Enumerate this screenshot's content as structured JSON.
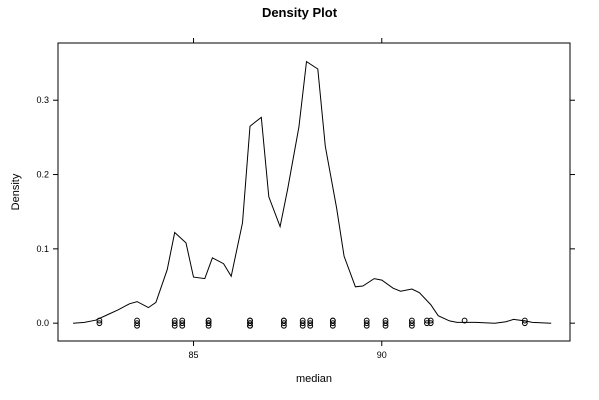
{
  "chart_data": {
    "type": "line",
    "title": "Density Plot",
    "xlabel": "median",
    "ylabel": "Density",
    "xlim": [
      81.4,
      95.0
    ],
    "ylim": [
      -0.024,
      0.377
    ],
    "x_ticks": [
      85,
      90
    ],
    "x_tick_labels": [
      "85",
      "90"
    ],
    "y_ticks": [
      0.0,
      0.1,
      0.2,
      0.3
    ],
    "y_tick_labels": [
      "0.0",
      "0.1",
      "0.2",
      "0.3"
    ],
    "grid": false,
    "series": [
      {
        "values": [
          [
            81.8,
            0.0
          ],
          [
            82.1,
            0.001
          ],
          [
            82.4,
            0.004
          ],
          [
            82.7,
            0.011
          ],
          [
            83.0,
            0.018
          ],
          [
            83.3,
            0.026
          ],
          [
            83.5,
            0.029
          ],
          [
            83.8,
            0.021
          ],
          [
            84.0,
            0.028
          ],
          [
            84.3,
            0.072
          ],
          [
            84.5,
            0.122
          ],
          [
            84.8,
            0.108
          ],
          [
            85.0,
            0.062
          ],
          [
            85.3,
            0.06
          ],
          [
            85.5,
            0.088
          ],
          [
            85.8,
            0.08
          ],
          [
            86.0,
            0.063
          ],
          [
            86.3,
            0.135
          ],
          [
            86.5,
            0.265
          ],
          [
            86.8,
            0.277
          ],
          [
            87.0,
            0.17
          ],
          [
            87.3,
            0.13
          ],
          [
            87.5,
            0.18
          ],
          [
            87.8,
            0.264
          ],
          [
            88.0,
            0.352
          ],
          [
            88.3,
            0.342
          ],
          [
            88.5,
            0.238
          ],
          [
            88.8,
            0.155
          ],
          [
            89.0,
            0.09
          ],
          [
            89.3,
            0.049
          ],
          [
            89.5,
            0.05
          ],
          [
            89.8,
            0.06
          ],
          [
            90.0,
            0.058
          ],
          [
            90.3,
            0.047
          ],
          [
            90.5,
            0.043
          ],
          [
            90.8,
            0.046
          ],
          [
            91.0,
            0.041
          ],
          [
            91.3,
            0.025
          ],
          [
            91.5,
            0.01
          ],
          [
            91.8,
            0.003
          ],
          [
            92.0,
            0.001
          ],
          [
            92.5,
            0.001
          ],
          [
            93.0,
            0.0
          ],
          [
            93.3,
            0.002
          ],
          [
            93.5,
            0.005
          ],
          [
            93.8,
            0.003
          ],
          [
            94.0,
            0.001
          ],
          [
            94.5,
            0.0
          ]
        ]
      }
    ],
    "rug_points": [
      82.5,
      82.5,
      83.5,
      83.5,
      83.5,
      84.5,
      84.5,
      84.5,
      84.7,
      84.7,
      84.7,
      85.4,
      85.4,
      85.4,
      85.4,
      85.4,
      86.5,
      86.5,
      86.5,
      86.5,
      86.5,
      86.5,
      87.4,
      87.4,
      87.4,
      87.4,
      87.9,
      87.9,
      87.9,
      88.1,
      88.1,
      88.1,
      88.7,
      88.7,
      88.7,
      88.7,
      89.6,
      89.6,
      89.6,
      90.1,
      90.1,
      90.1,
      90.8,
      90.8,
      90.8,
      91.2,
      91.2,
      91.3,
      91.3,
      92.2,
      93.8,
      93.8
    ],
    "colors": {
      "line": "#000000",
      "points": "#000000",
      "background": "#ffffff"
    }
  }
}
